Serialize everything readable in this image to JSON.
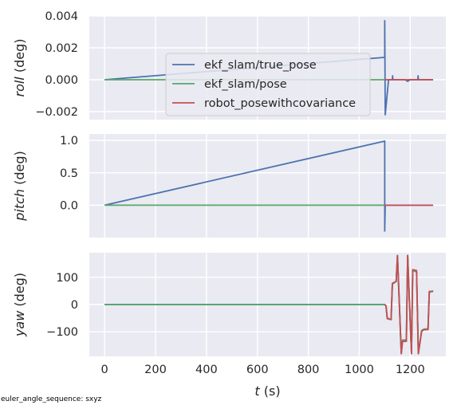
{
  "colors": {
    "background": "#eaeaf2",
    "grid": "#ffffff",
    "true_pose": "#4c72b0",
    "pose": "#55a868",
    "robot": "#c44e52"
  },
  "chart_data": [
    {
      "type": "line",
      "ylabel_var": "roll",
      "ylabel_unit": " (deg)",
      "xlim": [
        -60,
        1340
      ],
      "ylim": [
        -0.0025,
        0.004
      ],
      "yticks": [
        -0.002,
        0.0,
        0.002,
        0.004
      ],
      "ytick_labels": [
        "−0.002",
        "0.000",
        "0.002",
        "0.004"
      ],
      "legend": {
        "placement": "center",
        "entries": [
          "ekf_slam/true_pose",
          "ekf_slam/pose",
          "robot_posewithcovariance"
        ]
      },
      "series": [
        {
          "name": "ekf_slam/true_pose",
          "color_key": "true_pose",
          "x": [
            0,
            1098,
            1100,
            1100,
            1102,
            1115,
            1130,
            1131,
            1132,
            1150,
            1180,
            1190,
            1200,
            1230,
            1231,
            1232,
            1250,
            1290
          ],
          "y": [
            0,
            0.0014,
            0.0014,
            0.0037,
            -0.0022,
            0.0,
            0.0,
            0.00025,
            0.0,
            0.0,
            0.0,
            -0.0001,
            0.0,
            0.0,
            0.00025,
            0.0,
            0.0,
            0.0
          ]
        },
        {
          "name": "ekf_slam/pose",
          "color_key": "pose",
          "x": [
            0,
            1100
          ],
          "y": [
            0,
            0
          ]
        },
        {
          "name": "robot_posewithcovariance",
          "color_key": "robot",
          "x": [
            1100,
            1290
          ],
          "y": [
            0,
            0
          ]
        }
      ]
    },
    {
      "type": "line",
      "ylabel_var": "pitch",
      "ylabel_unit": " (deg)",
      "xlim": [
        -60,
        1340
      ],
      "ylim": [
        -0.5,
        1.1
      ],
      "yticks": [
        0.0,
        0.5,
        1.0
      ],
      "ytick_labels": [
        "0.0",
        "0.5",
        "1.0"
      ],
      "series": [
        {
          "name": "ekf_slam/true_pose",
          "color_key": "true_pose",
          "x": [
            0,
            1100,
            1100,
            1102,
            1290
          ],
          "y": [
            0,
            0.99,
            -0.4,
            0,
            0
          ]
        },
        {
          "name": "ekf_slam/pose",
          "color_key": "pose",
          "x": [
            0,
            1100
          ],
          "y": [
            0,
            0
          ]
        },
        {
          "name": "robot_posewithcovariance",
          "color_key": "robot",
          "x": [
            1100,
            1290
          ],
          "y": [
            0,
            0
          ]
        }
      ]
    },
    {
      "type": "line",
      "ylabel_var": "yaw",
      "ylabel_unit": " (deg)",
      "xlabel_var": "t",
      "xlabel_unit": " (s)",
      "xlim": [
        -60,
        1340
      ],
      "xticks": [
        0,
        200,
        400,
        600,
        800,
        1000,
        1200
      ],
      "xtick_labels": [
        "0",
        "200",
        "400",
        "600",
        "800",
        "1000",
        "1200"
      ],
      "ylim": [
        -190,
        190
      ],
      "yticks": [
        -100,
        0,
        100
      ],
      "ytick_labels": [
        "−100",
        "0",
        "100"
      ],
      "series": [
        {
          "name": "ekf_slam/true_pose",
          "color_key": "true_pose",
          "x": [
            0,
            1100,
            1105,
            1110,
            1125,
            1130,
            1145,
            1150,
            1165,
            1170,
            1185,
            1190,
            1205,
            1210,
            1225,
            1232,
            1245,
            1255,
            1270,
            1275,
            1290
          ],
          "y": [
            0,
            0,
            -5,
            -50,
            -55,
            75,
            85,
            180,
            -180,
            -130,
            -130,
            180,
            -180,
            125,
            120,
            -180,
            -95,
            -90,
            -90,
            45,
            50
          ]
        },
        {
          "name": "ekf_slam/pose",
          "color_key": "pose",
          "x": [
            0,
            1100,
            1105,
            1110,
            1125,
            1130,
            1145,
            1150,
            1165,
            1170,
            1185,
            1190,
            1205,
            1210,
            1225,
            1232,
            1245,
            1255,
            1270,
            1275,
            1290
          ],
          "y": [
            0,
            0,
            -5,
            -50,
            -55,
            75,
            85,
            180,
            -180,
            -130,
            -130,
            180,
            -180,
            125,
            120,
            -180,
            -95,
            -90,
            -90,
            45,
            50
          ]
        },
        {
          "name": "robot_posewithcovariance",
          "color_key": "robot",
          "x": [
            1100,
            1105,
            1110,
            1125,
            1130,
            1145,
            1150,
            1165,
            1170,
            1185,
            1190,
            1205,
            1210,
            1225,
            1232,
            1245,
            1255,
            1270,
            1275,
            1290
          ],
          "y": [
            0,
            -5,
            -52,
            -55,
            78,
            85,
            180,
            -180,
            -135,
            -135,
            180,
            -180,
            128,
            125,
            -180,
            -98,
            -92,
            -92,
            48,
            48
          ]
        }
      ]
    }
  ],
  "footnote": "euler_angle_sequence: sxyz"
}
